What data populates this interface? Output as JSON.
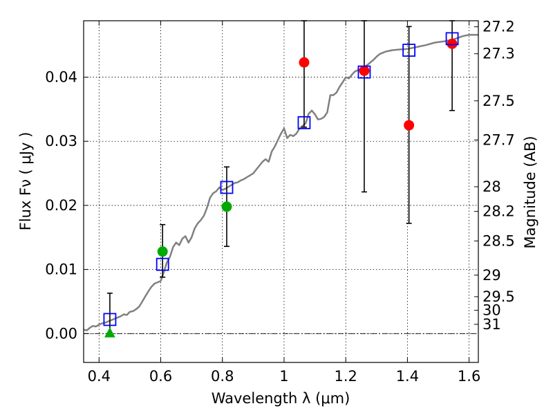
{
  "chart_data": {
    "type": "scatter",
    "xlabel": "Wavelength  λ (μm)",
    "ylabel": "Flux  Fν  ( μJy )",
    "ylabel_right": "Magnitude (AB)",
    "xlim": [
      0.35,
      1.63
    ],
    "ylim": [
      -0.0045,
      0.0488
    ],
    "x_ticks": [
      {
        "value": 0.4,
        "label": "0.4"
      },
      {
        "value": 0.6,
        "label": "0.6"
      },
      {
        "value": 0.8,
        "label": "0.8"
      },
      {
        "value": 1.0,
        "label": "1"
      },
      {
        "value": 1.2,
        "label": "1.2"
      },
      {
        "value": 1.4,
        "label": "1.4"
      },
      {
        "value": 1.6,
        "label": "1.6"
      }
    ],
    "y_ticks": [
      {
        "value": 0.0,
        "label": "0.00"
      },
      {
        "value": 0.01,
        "label": "0.01"
      },
      {
        "value": 0.02,
        "label": "0.02"
      },
      {
        "value": 0.03,
        "label": "0.03"
      },
      {
        "value": 0.04,
        "label": "0.04"
      }
    ],
    "mag_ticks": [
      {
        "value": 27.2,
        "label": "27.2"
      },
      {
        "value": 27.3,
        "label": "27.3"
      },
      {
        "value": 27.5,
        "label": "27.5"
      },
      {
        "value": 27.7,
        "label": "27.7"
      },
      {
        "value": 28,
        "label": "28"
      },
      {
        "value": 28.2,
        "label": "28.2"
      },
      {
        "value": 28.5,
        "label": "28.5"
      },
      {
        "value": 29,
        "label": "29"
      },
      {
        "value": 29.5,
        "label": "29.5"
      },
      {
        "value": 30,
        "label": "30"
      },
      {
        "value": 31,
        "label": "31"
      }
    ],
    "grid": true,
    "zero_line": true,
    "model_color": "#808080",
    "model_spectrum": [
      [
        0.35,
        0.0006
      ],
      [
        0.36,
        0.0005
      ],
      [
        0.37,
        0.0009
      ],
      [
        0.38,
        0.0012
      ],
      [
        0.39,
        0.0011
      ],
      [
        0.4,
        0.0014
      ],
      [
        0.41,
        0.0016
      ],
      [
        0.42,
        0.0017
      ],
      [
        0.43,
        0.0019
      ],
      [
        0.44,
        0.0021
      ],
      [
        0.45,
        0.0023
      ],
      [
        0.46,
        0.0025
      ],
      [
        0.47,
        0.0027
      ],
      [
        0.48,
        0.003
      ],
      [
        0.49,
        0.0029
      ],
      [
        0.5,
        0.0034
      ],
      [
        0.51,
        0.0035
      ],
      [
        0.52,
        0.0038
      ],
      [
        0.53,
        0.0042
      ],
      [
        0.54,
        0.005
      ],
      [
        0.55,
        0.0058
      ],
      [
        0.56,
        0.0066
      ],
      [
        0.57,
        0.0073
      ],
      [
        0.58,
        0.0078
      ],
      [
        0.59,
        0.008
      ],
      [
        0.6,
        0.0082
      ],
      [
        0.61,
        0.0096
      ],
      [
        0.62,
        0.0111
      ],
      [
        0.63,
        0.012
      ],
      [
        0.64,
        0.0135
      ],
      [
        0.65,
        0.0142
      ],
      [
        0.66,
        0.0138
      ],
      [
        0.67,
        0.0148
      ],
      [
        0.68,
        0.0152
      ],
      [
        0.69,
        0.0142
      ],
      [
        0.7,
        0.015
      ],
      [
        0.71,
        0.0164
      ],
      [
        0.72,
        0.0172
      ],
      [
        0.73,
        0.0177
      ],
      [
        0.74,
        0.0184
      ],
      [
        0.75,
        0.0196
      ],
      [
        0.76,
        0.0212
      ],
      [
        0.77,
        0.0219
      ],
      [
        0.78,
        0.0222
      ],
      [
        0.79,
        0.0228
      ],
      [
        0.8,
        0.0224
      ],
      [
        0.81,
        0.0226
      ],
      [
        0.82,
        0.0229
      ],
      [
        0.83,
        0.0232
      ],
      [
        0.84,
        0.0235
      ],
      [
        0.85,
        0.0236
      ],
      [
        0.86,
        0.0239
      ],
      [
        0.87,
        0.0241
      ],
      [
        0.88,
        0.0244
      ],
      [
        0.89,
        0.0247
      ],
      [
        0.9,
        0.025
      ],
      [
        0.91,
        0.0256
      ],
      [
        0.92,
        0.0262
      ],
      [
        0.93,
        0.0268
      ],
      [
        0.94,
        0.0272
      ],
      [
        0.95,
        0.0268
      ],
      [
        0.96,
        0.0284
      ],
      [
        0.97,
        0.0292
      ],
      [
        0.98,
        0.0302
      ],
      [
        0.99,
        0.0312
      ],
      [
        1.0,
        0.032
      ],
      [
        1.01,
        0.0305
      ],
      [
        1.02,
        0.031
      ],
      [
        1.03,
        0.0308
      ],
      [
        1.04,
        0.0312
      ],
      [
        1.05,
        0.032
      ],
      [
        1.06,
        0.0324
      ],
      [
        1.07,
        0.0328
      ],
      [
        1.08,
        0.0343
      ],
      [
        1.09,
        0.0348
      ],
      [
        1.1,
        0.0342
      ],
      [
        1.11,
        0.0334
      ],
      [
        1.12,
        0.0335
      ],
      [
        1.13,
        0.0338
      ],
      [
        1.14,
        0.0345
      ],
      [
        1.15,
        0.0372
      ],
      [
        1.16,
        0.0372
      ],
      [
        1.17,
        0.0376
      ],
      [
        1.18,
        0.0385
      ],
      [
        1.19,
        0.0392
      ],
      [
        1.2,
        0.04
      ],
      [
        1.21,
        0.0398
      ],
      [
        1.22,
        0.0404
      ],
      [
        1.23,
        0.0409
      ],
      [
        1.24,
        0.0411
      ],
      [
        1.25,
        0.0413
      ],
      [
        1.26,
        0.0416
      ],
      [
        1.27,
        0.0419
      ],
      [
        1.28,
        0.0423
      ],
      [
        1.29,
        0.0427
      ],
      [
        1.3,
        0.0432
      ],
      [
        1.31,
        0.0436
      ],
      [
        1.32,
        0.0438
      ],
      [
        1.33,
        0.044
      ],
      [
        1.34,
        0.0441
      ],
      [
        1.35,
        0.0442
      ],
      [
        1.37,
        0.0443
      ],
      [
        1.4,
        0.0444
      ],
      [
        1.43,
        0.0447
      ],
      [
        1.46,
        0.045
      ],
      [
        1.49,
        0.0454
      ],
      [
        1.52,
        0.0456
      ],
      [
        1.55,
        0.0459
      ],
      [
        1.58,
        0.0464
      ],
      [
        1.6,
        0.0466
      ],
      [
        1.63,
        0.0466
      ]
    ],
    "model_photometry": {
      "color": "#0000ff",
      "marker": "open-square",
      "x": [
        0.435,
        0.606,
        0.814,
        1.065,
        1.26,
        1.405,
        1.545
      ],
      "y": [
        0.0022,
        0.0108,
        0.0228,
        0.0329,
        0.0408,
        0.0442,
        0.046
      ]
    },
    "observed": [
      {
        "x": 0.435,
        "y": 0.0,
        "err_lo": 0.0,
        "err_hi": 0.0063,
        "color": "#00aa00",
        "marker": "triangle"
      },
      {
        "x": 0.606,
        "y": 0.0128,
        "err_lo": 0.0088,
        "err_hi": 0.017,
        "color": "#00aa00",
        "marker": "circle"
      },
      {
        "x": 0.814,
        "y": 0.0198,
        "err_lo": 0.0136,
        "err_hi": 0.026,
        "color": "#00aa00",
        "marker": "circle"
      },
      {
        "x": 1.065,
        "y": 0.0423,
        "err_lo": 0.0322,
        "err_hi": 0.0488,
        "color": "#ff0000",
        "marker": "circle"
      },
      {
        "x": 1.26,
        "y": 0.041,
        "err_lo": 0.0221,
        "err_hi": 0.0488,
        "color": "#ff0000",
        "marker": "circle"
      },
      {
        "x": 1.405,
        "y": 0.0325,
        "err_lo": 0.0172,
        "err_hi": 0.0479,
        "color": "#ff0000",
        "marker": "circle"
      },
      {
        "x": 1.545,
        "y": 0.0452,
        "err_lo": 0.0348,
        "err_hi": 0.0488,
        "color": "#ff0000",
        "marker": "circle"
      }
    ]
  }
}
